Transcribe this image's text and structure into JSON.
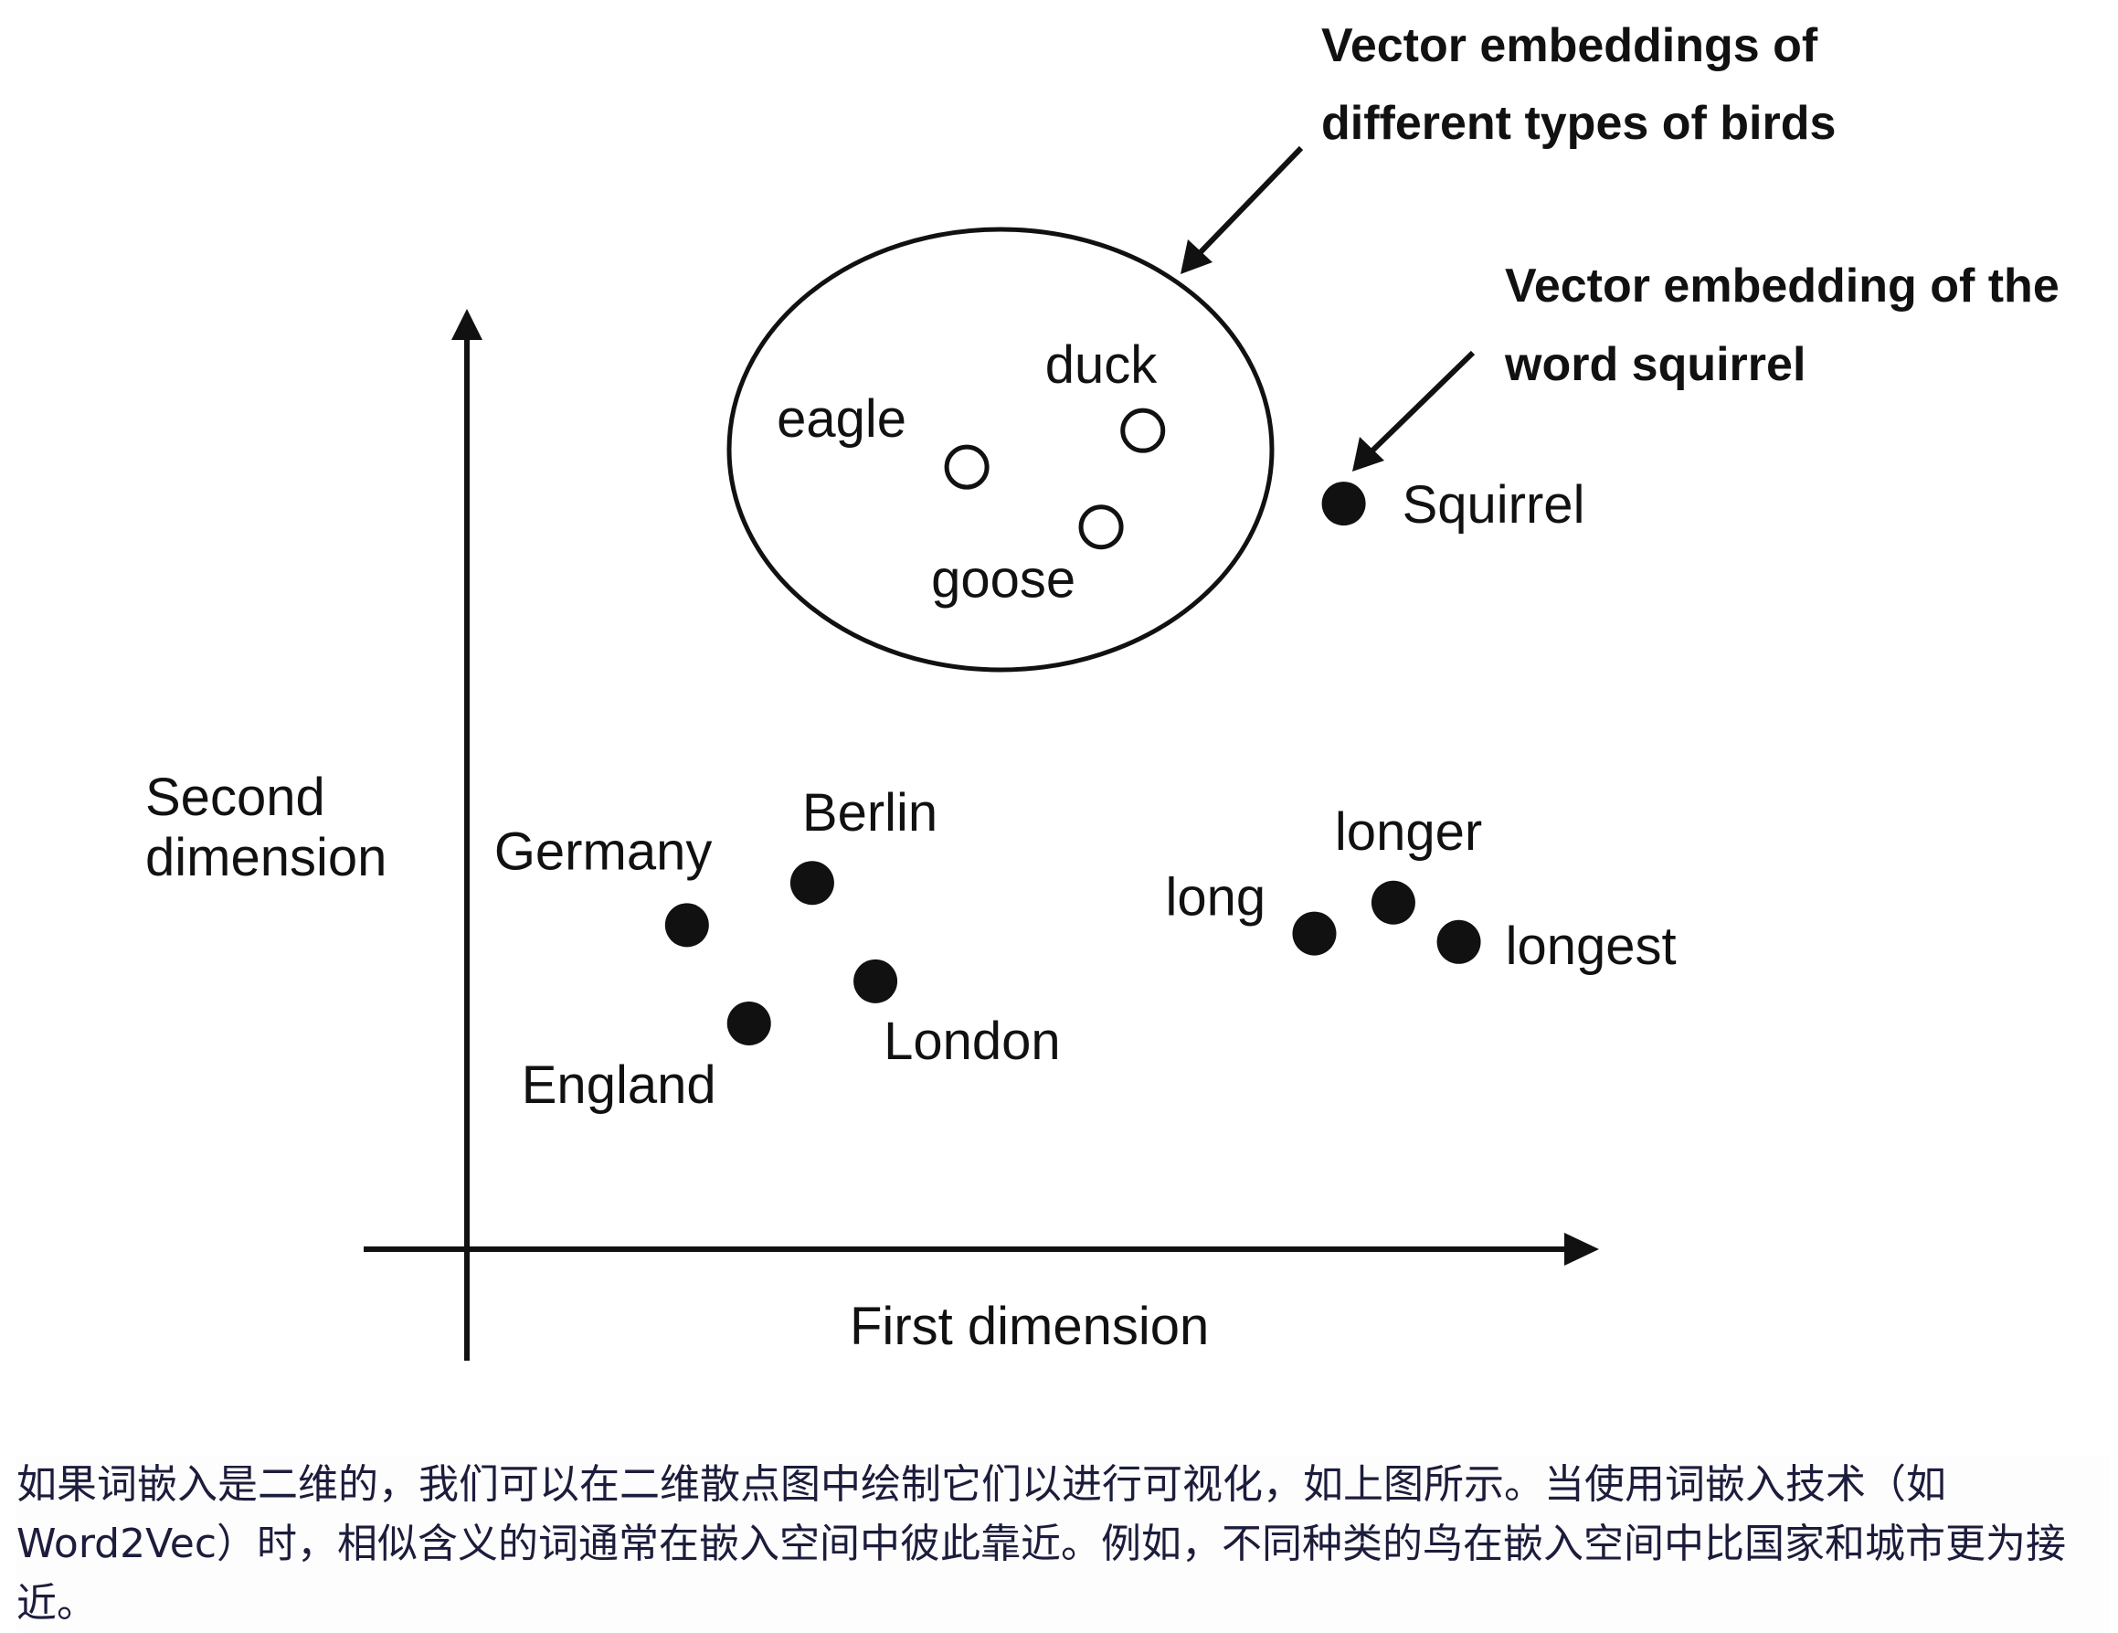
{
  "chart_data": {
    "type": "scatter",
    "xlabel": "First dimension",
    "ylabel": [
      "Second",
      "dimension"
    ],
    "xlim": [
      0,
      10
    ],
    "ylim": [
      0,
      10
    ],
    "grid": false,
    "points": [
      {
        "label": "eagle",
        "x": 4.43,
        "y": 8.35,
        "marker": "open",
        "group": "birds"
      },
      {
        "label": "duck",
        "x": 5.99,
        "y": 8.74,
        "marker": "open",
        "group": "birds"
      },
      {
        "label": "goose",
        "x": 5.62,
        "y": 7.71,
        "marker": "open",
        "group": "birds"
      },
      {
        "label": "Squirrel",
        "x": 7.77,
        "y": 7.96,
        "marker": "filled"
      },
      {
        "label": "Germany",
        "x": 1.95,
        "y": 3.46,
        "marker": "filled"
      },
      {
        "label": "Berlin",
        "x": 3.06,
        "y": 3.91,
        "marker": "filled"
      },
      {
        "label": "London",
        "x": 3.62,
        "y": 2.86,
        "marker": "filled"
      },
      {
        "label": "England",
        "x": 2.5,
        "y": 2.41,
        "marker": "filled"
      },
      {
        "label": "long",
        "x": 7.51,
        "y": 3.37,
        "marker": "filled"
      },
      {
        "label": "longer",
        "x": 8.21,
        "y": 3.7,
        "marker": "filled"
      },
      {
        "label": "longest",
        "x": 8.79,
        "y": 3.28,
        "marker": "filled"
      }
    ],
    "annotations": [
      {
        "lines": [
          "Vector embeddings of",
          "different types of birds"
        ],
        "target": "birds"
      },
      {
        "lines": [
          "Vector embedding of the",
          "word squirrel"
        ],
        "target": "Squirrel"
      }
    ]
  },
  "caption": "如果词嵌入是二维的，我们可以在二维散点图中绘制它们以进行可视化，如上图所示。当使用词嵌入技术（如 Word2Vec）时，相似含义的词通常在嵌入空间中彼此靠近。例如，不同种类的鸟在嵌入空间中比国家和城市更为接近。",
  "colors": {
    "ink": "#111111",
    "caption_text": "#1c1c3c"
  }
}
